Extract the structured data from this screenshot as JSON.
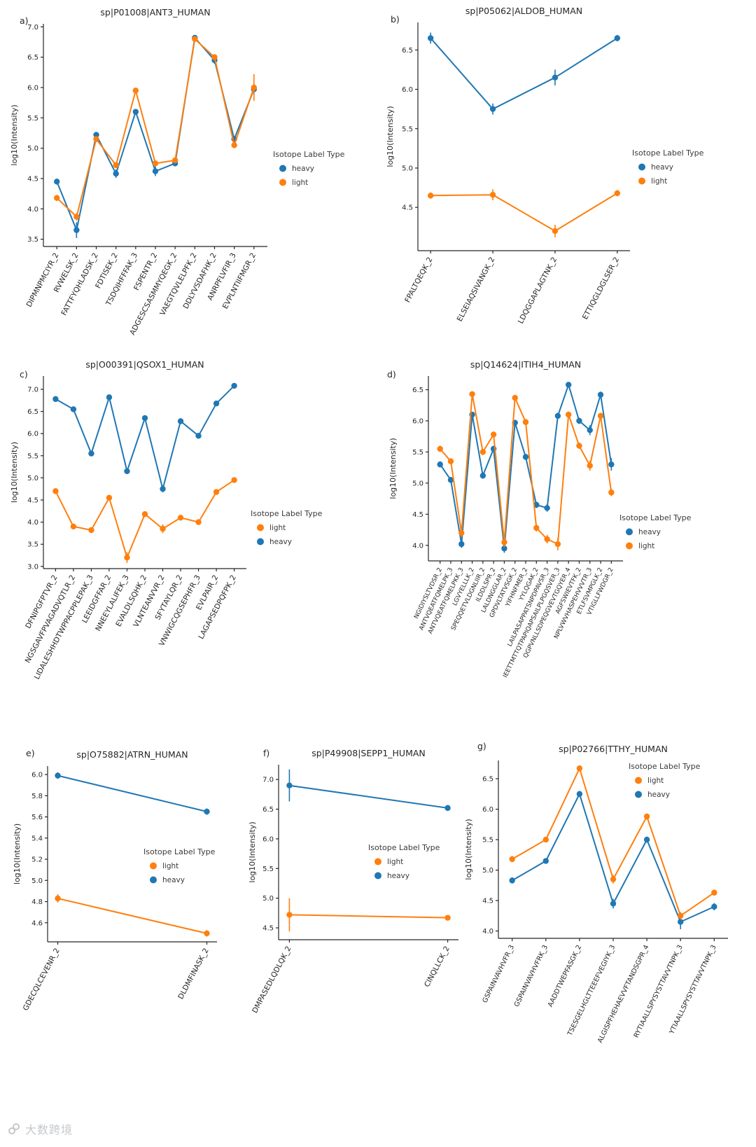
{
  "watermark": {
    "text": "大数跨境"
  },
  "chart_data": [
    {
      "id": "a",
      "panel_label": "a)",
      "type": "line",
      "title": "sp|P01008|ANT3_HUMAN",
      "ylabel": "log10(Intensity)",
      "legend_title": "Isotope Label Type",
      "legend_position": "right-center",
      "legend_order": [
        "heavy",
        "light"
      ],
      "ylim": [
        3.38,
        7.05
      ],
      "yticks": [
        3.5,
        4.0,
        4.5,
        5.0,
        5.5,
        6.0,
        6.5,
        7.0
      ],
      "categories": [
        "DIPMNPMCIYR_2",
        "RVWELSK_2",
        "FATTFYQHLADSK_2",
        "FDTISEK_2",
        "TSDQIHFFFAK_3",
        "FSPENTR_2",
        "ADGESCSASMMYQEGK_2",
        "VAEGTQVLELPFK_2",
        "DDLYVSDAFHK_2",
        "ANRPFLVFIR_3",
        "EVPLNTIIFMGR_2"
      ],
      "series": [
        {
          "name": "heavy",
          "color": "#1f77b4",
          "values": [
            4.45,
            3.65,
            5.22,
            4.58,
            5.6,
            4.62,
            4.75,
            6.82,
            6.45,
            5.15,
            5.97
          ],
          "errors": [
            0.05,
            0.13,
            0.04,
            0.07,
            0.04,
            0.08,
            0.05,
            0.03,
            0.06,
            0.05,
            0.1
          ]
        },
        {
          "name": "light",
          "color": "#ff7f0e",
          "values": [
            4.18,
            3.87,
            5.15,
            4.72,
            5.95,
            4.75,
            4.8,
            6.8,
            6.5,
            5.05,
            6.0
          ],
          "errors": [
            0.05,
            0.06,
            0.04,
            0.05,
            0.04,
            0.05,
            0.05,
            0.03,
            0.05,
            0.05,
            0.22
          ]
        }
      ]
    },
    {
      "id": "b",
      "panel_label": "b)",
      "type": "line",
      "title": "sp|P05062|ALDOB_HUMAN",
      "ylabel": "log10(Intensity)",
      "legend_title": "Isotope Label Type",
      "legend_position": "right-center",
      "legend_order": [
        "heavy",
        "light"
      ],
      "ylim": [
        3.95,
        6.85
      ],
      "yticks": [
        4.5,
        5.0,
        5.5,
        6.0,
        6.5
      ],
      "categories": [
        "FPALTQEQK_2",
        "ELSEIAQSIVANGK_2",
        "LDQGGAPLAGTNK_2",
        "ETTIQGLDGLSER_2"
      ],
      "series": [
        {
          "name": "heavy",
          "color": "#1f77b4",
          "values": [
            6.65,
            5.75,
            6.15,
            6.65
          ],
          "errors": [
            0.07,
            0.07,
            0.1,
            0.04
          ]
        },
        {
          "name": "light",
          "color": "#ff7f0e",
          "values": [
            4.65,
            4.66,
            4.2,
            4.68
          ],
          "errors": [
            0.04,
            0.07,
            0.08,
            0.04
          ]
        }
      ]
    },
    {
      "id": "c",
      "panel_label": "c)",
      "type": "line",
      "title": "sp|O00391|QSOX1_HUMAN",
      "ylabel": "log10(Intensity)",
      "legend_title": "Isotope Label Type",
      "legend_position": "right-center",
      "legend_order": [
        "light",
        "heavy"
      ],
      "ylim": [
        2.95,
        7.3
      ],
      "yticks": [
        3.0,
        3.5,
        4.0,
        4.5,
        5.0,
        5.5,
        6.0,
        6.5,
        7.0
      ],
      "categories": [
        "DFNIPGFPTVR_2",
        "NGSGAVFPVAGADVQTLR_2",
        "LIDALESHHDTWPPACPPLEPAK_3",
        "LEEIDGFFAR_2",
        "NNEEYLALIFEK_3",
        "EVALDLSQHK_2",
        "VLNTEANVVR_2",
        "SFYTAYLQR_2",
        "VNWIGCQGSEPHFR_3",
        "EVLPAIR_2",
        "LAGAPSEDPQFPK_2"
      ],
      "series": [
        {
          "name": "heavy",
          "color": "#1f77b4",
          "values": [
            6.78,
            6.55,
            5.55,
            6.82,
            5.15,
            6.35,
            4.75,
            6.28,
            5.95,
            6.68,
            7.08
          ],
          "errors": [
            0.04,
            0.04,
            0.05,
            0.04,
            0.06,
            0.04,
            0.08,
            0.04,
            0.05,
            0.04,
            0.04
          ]
        },
        {
          "name": "light",
          "color": "#ff7f0e",
          "values": [
            4.7,
            3.9,
            3.82,
            4.55,
            3.2,
            4.18,
            3.85,
            4.1,
            4.0,
            4.68,
            4.95
          ],
          "errors": [
            0.05,
            0.05,
            0.06,
            0.05,
            0.12,
            0.06,
            0.1,
            0.05,
            0.05,
            0.05,
            0.05
          ]
        }
      ]
    },
    {
      "id": "d",
      "panel_label": "d)",
      "type": "line",
      "title": "sp|Q14624|ITIH4_HUMAN",
      "ylabel": "log10(Intensity)",
      "legend_title": "Isotope Label Type",
      "legend_position": "right-center",
      "legend_order": [
        "heavy",
        "light"
      ],
      "ylim": [
        3.75,
        6.72
      ],
      "yticks": [
        4.0,
        4.5,
        5.0,
        5.5,
        6.0,
        6.5
      ],
      "categories": [
        "NGIDIYSLTVDSR_2",
        "ANTVQEATFQMELPK_3",
        "ANTVQEATFQMELPKK_3",
        "LGVYELLLK_2",
        "SPEQQETVLDGNLIIR_2",
        "ILDDLSPR_2",
        "LALDNGGLAR_2",
        "GPDVLTATVSGK_2",
        "YIFHNFMER_2",
        "YYLQGAK_2",
        "LAILPASAPPATSNPDPAVSR_3",
        "IEETTMTTQTPAPIQAPSAILPLPGQSVER_3",
        "QGPVNLLSDPEQGVEVTGQYER_4",
        "AGFSWIEVTFK_2",
        "NPLVWVHASPEHVVVTR_3",
        "ETLFSVMPGLK_2",
        "VTIGLLFWDGR_2"
      ],
      "series": [
        {
          "name": "heavy",
          "color": "#1f77b4",
          "values": [
            5.3,
            5.05,
            4.02,
            6.1,
            5.12,
            5.55,
            3.95,
            5.97,
            5.42,
            4.65,
            4.6,
            6.08,
            6.58,
            6.0,
            5.85,
            6.42,
            5.3
          ],
          "errors": [
            0.05,
            0.05,
            0.06,
            0.04,
            0.05,
            0.05,
            0.07,
            0.04,
            0.05,
            0.05,
            0.06,
            0.05,
            0.04,
            0.05,
            0.08,
            0.05,
            0.1
          ]
        },
        {
          "name": "light",
          "color": "#ff7f0e",
          "values": [
            5.55,
            5.35,
            4.2,
            6.43,
            5.5,
            5.78,
            4.05,
            6.37,
            5.98,
            4.28,
            4.1,
            4.02,
            6.1,
            5.6,
            5.28,
            6.08,
            4.85
          ],
          "errors": [
            0.05,
            0.05,
            0.07,
            0.04,
            0.05,
            0.05,
            0.08,
            0.04,
            0.05,
            0.06,
            0.07,
            0.1,
            0.05,
            0.05,
            0.08,
            0.05,
            0.06
          ]
        }
      ]
    },
    {
      "id": "e",
      "panel_label": "e)",
      "type": "line",
      "title": "sp|O75882|ATRN_HUMAN",
      "ylabel": "log10(Intensity)",
      "legend_title": "Isotope Label Type",
      "legend_position": "inside-right",
      "legend_order": [
        "light",
        "heavy"
      ],
      "ylim": [
        4.42,
        6.08
      ],
      "yticks": [
        4.6,
        4.8,
        5.0,
        5.2,
        5.4,
        5.6,
        5.8,
        6.0
      ],
      "categories": [
        "GDECQLCEVENR_2",
        "DLDMFINASK_2"
      ],
      "series": [
        {
          "name": "heavy",
          "color": "#1f77b4",
          "values": [
            5.99,
            5.65
          ],
          "errors": [
            0.03,
            0.03
          ]
        },
        {
          "name": "light",
          "color": "#ff7f0e",
          "values": [
            4.83,
            4.5
          ],
          "errors": [
            0.04,
            0.03
          ]
        }
      ]
    },
    {
      "id": "f",
      "panel_label": "f)",
      "type": "line",
      "title": "sp|P49908|SEPP1_HUMAN",
      "ylabel": "log10(Intensity)",
      "legend_title": "Isotope Label Type",
      "legend_position": "inside-right",
      "legend_order": [
        "light",
        "heavy"
      ],
      "ylim": [
        4.3,
        7.25
      ],
      "yticks": [
        4.5,
        5.0,
        5.5,
        6.0,
        6.5,
        7.0
      ],
      "categories": [
        "DMPASEDLQDLQK_2",
        "CINQLLCK_2"
      ],
      "series": [
        {
          "name": "heavy",
          "color": "#1f77b4",
          "values": [
            6.9,
            6.52
          ],
          "errors": [
            0.27,
            0.05
          ]
        },
        {
          "name": "light",
          "color": "#ff7f0e",
          "values": [
            4.72,
            4.67
          ],
          "errors": [
            0.28,
            0.04
          ]
        }
      ]
    },
    {
      "id": "g",
      "panel_label": "g)",
      "type": "line",
      "title": "sp|P02766|TTHY_HUMAN",
      "ylabel": "log10(Intensity)",
      "legend_title": "Isotope Label Type",
      "legend_position": "top-right",
      "legend_order": [
        "light",
        "heavy"
      ],
      "ylim": [
        3.88,
        6.8
      ],
      "yticks": [
        4.0,
        4.5,
        5.0,
        5.5,
        6.0,
        6.5
      ],
      "categories": [
        "GSPAINVAVHVFR_3",
        "GSPAINVAVHVFRK_3",
        "AADDTWEPFASGK_2",
        "TSESGELHGLTTEEEFVEGIYK_3",
        "ALGISPFHEHAEVVFTANDSGPR_4",
        "RYTIAALLSPYSYSTTAVVTNPK_3",
        "YTIAALLSPYSYSTTAVVTNPK_3"
      ],
      "series": [
        {
          "name": "heavy",
          "color": "#1f77b4",
          "values": [
            4.83,
            5.15,
            6.25,
            4.45,
            5.5,
            4.15,
            4.4
          ],
          "errors": [
            0.05,
            0.04,
            0.05,
            0.08,
            0.05,
            0.12,
            0.06
          ]
        },
        {
          "name": "light",
          "color": "#ff7f0e",
          "values": [
            5.18,
            5.5,
            6.67,
            4.85,
            5.88,
            4.25,
            4.63
          ],
          "errors": [
            0.05,
            0.04,
            0.05,
            0.07,
            0.05,
            0.06,
            0.05
          ]
        }
      ]
    }
  ]
}
